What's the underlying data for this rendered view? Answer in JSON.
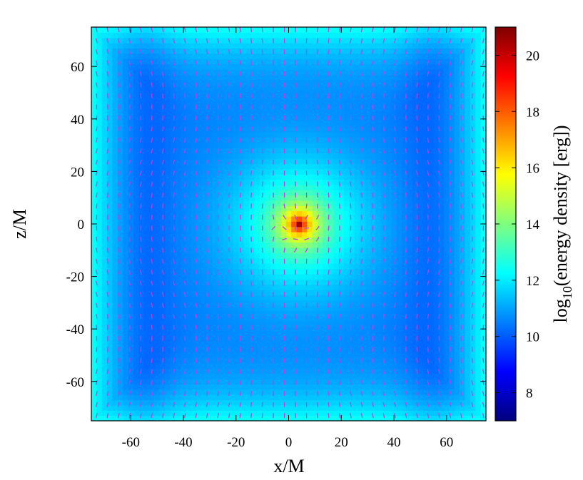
{
  "chart_data": {
    "type": "heatmap",
    "title": "",
    "xlabel": "x/M",
    "ylabel": "z/M",
    "xlim": [
      -75,
      75
    ],
    "ylim": [
      -75,
      75
    ],
    "x_ticks": [
      "-60",
      "-40",
      "-20",
      "0",
      "20",
      "40",
      "60"
    ],
    "y_ticks": [
      "60",
      "40",
      "20",
      "0",
      "-20",
      "-40",
      "-60"
    ],
    "x_tick_values": [
      -60,
      -40,
      -20,
      0,
      20,
      40,
      60
    ],
    "y_tick_values": [
      60,
      40,
      20,
      0,
      -20,
      -40,
      -60
    ],
    "colorbar": {
      "label": {
        "prefix": "log",
        "subscript": "10",
        "rest": "(energy density [erg])"
      },
      "range": [
        7,
        21
      ],
      "ticks": [
        "20",
        "18",
        "16",
        "14",
        "12",
        "10",
        "8"
      ],
      "tick_values": [
        20,
        18,
        16,
        14,
        12,
        10,
        8
      ],
      "colormap": "jet"
    },
    "field": {
      "peak_position": [
        4,
        0
      ],
      "peak_value": 21,
      "background_value": 10.5,
      "edge_value": 12.5
    },
    "vector_field": {
      "description_hidden": false,
      "color": "#c040e0",
      "orientation": "mostly vertical"
    },
    "grid": false
  }
}
